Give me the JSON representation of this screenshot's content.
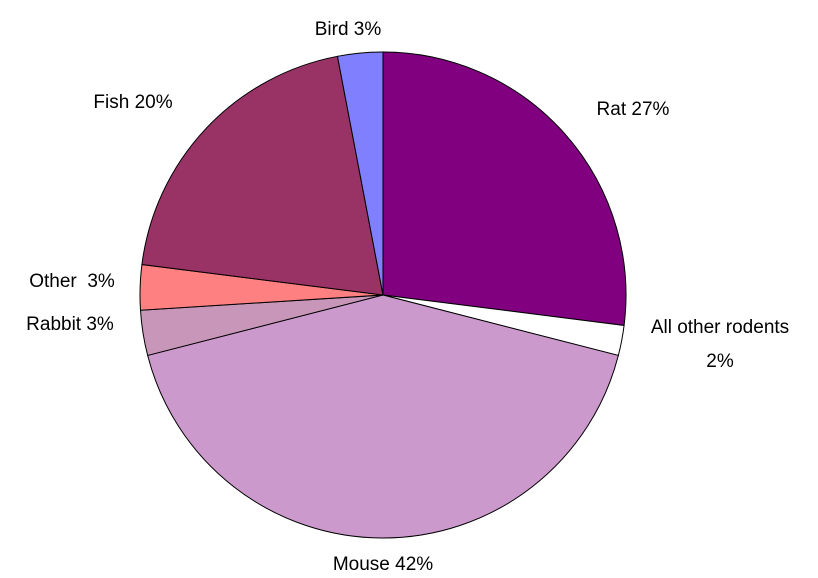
{
  "chart_data": {
    "type": "pie",
    "categories": [
      "Rat",
      "All other rodents",
      "Mouse",
      "Rabbit",
      "Other",
      "Fish",
      "Bird"
    ],
    "values": [
      27,
      2,
      42,
      3,
      3,
      20,
      3
    ],
    "value_labels": [
      "27%",
      "2%",
      "42%",
      "3%",
      "3%",
      "20%",
      "3%"
    ],
    "colors": [
      "#800080",
      "#ffffff",
      "#cc99cc",
      "#c896b8",
      "#ff8080",
      "#993366",
      "#8080ff"
    ]
  }
}
